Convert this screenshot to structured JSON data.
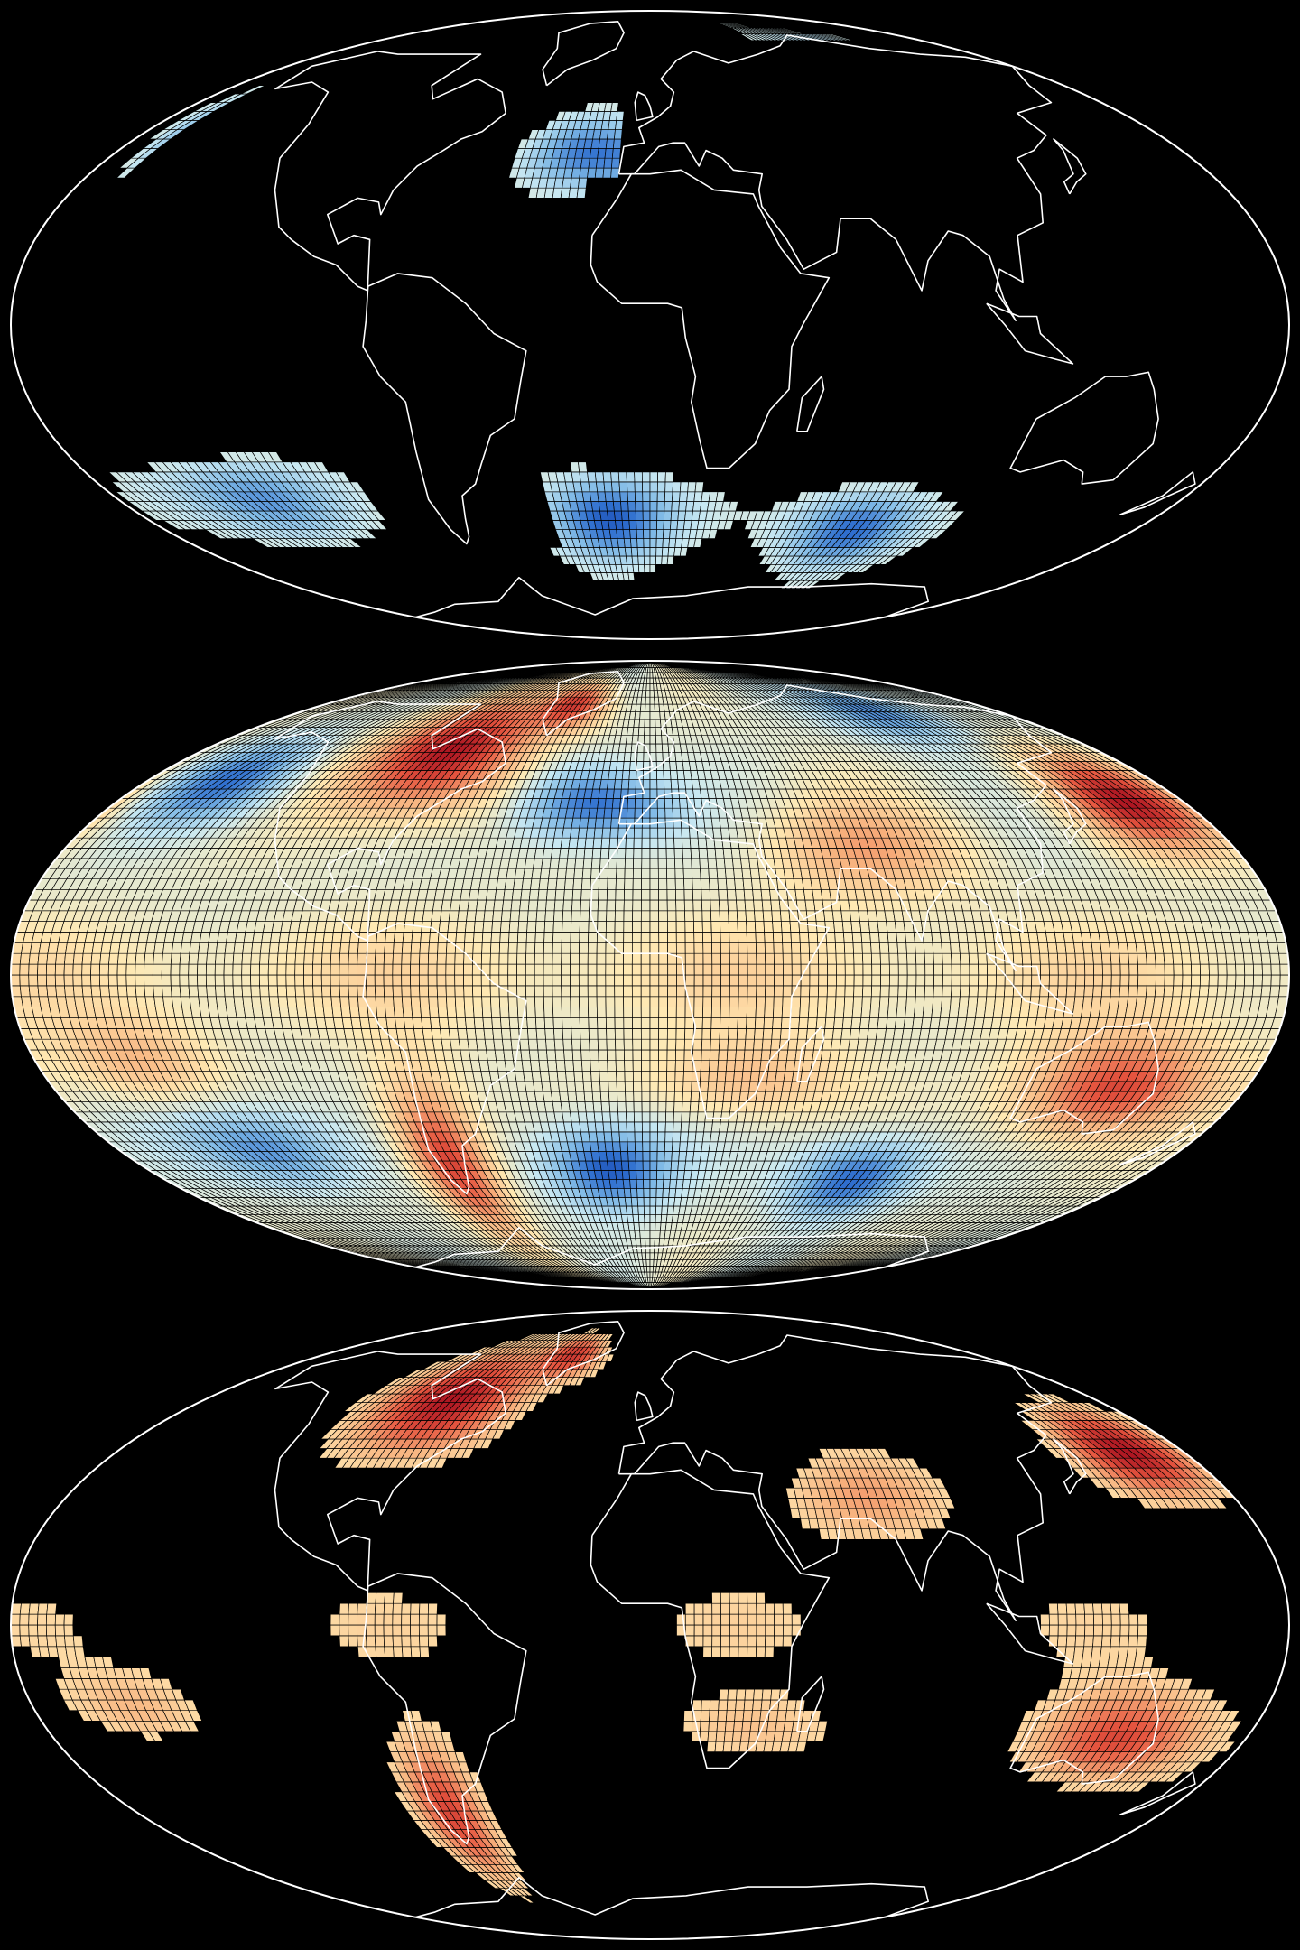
{
  "figure": {
    "background": "#000000",
    "projection": "mollweide",
    "grid_resolution_deg": 2.5,
    "outline_color": "#ffffff",
    "coastline_color": "#ffffff",
    "cell_edge_color": "#000000"
  },
  "colormap": {
    "name": "diverging blue-to-red",
    "stops": [
      "#0a2f9e",
      "#2f6fcf",
      "#7fb9e6",
      "#c8e8f2",
      "#ffe9b3",
      "#f7b07c",
      "#e5553f",
      "#a8101f"
    ]
  },
  "panels": [
    {
      "id": "top",
      "subset": "negative anomalies only",
      "filter": "neg"
    },
    {
      "id": "middle",
      "subset": "all grid cells",
      "filter": "all"
    },
    {
      "id": "bottom",
      "subset": "positive anomalies only",
      "filter": "pos"
    }
  ],
  "field_features": [
    {
      "name": "north-pacific-cold-pool",
      "lon": -150,
      "lat": 47,
      "amp": -1.0,
      "rlon": 22,
      "rlat": 11
    },
    {
      "name": "atlantic-subpolar-cold",
      "lon": -25,
      "lat": 42,
      "amp": -0.9,
      "rlon": 20,
      "rlat": 10
    },
    {
      "name": "north-atlantic-cold",
      "lon": -5,
      "lat": 40,
      "amp": -0.5,
      "rlon": 18,
      "rlat": 8
    },
    {
      "name": "arctic-siberia-cold",
      "lon": 115,
      "lat": 68,
      "amp": -0.9,
      "rlon": 26,
      "rlat": 9
    },
    {
      "name": "south-pacific-cold",
      "lon": -130,
      "lat": -42,
      "amp": -0.9,
      "rlon": 26,
      "rlat": 10
    },
    {
      "name": "south-atlantic-cold",
      "lon": -15,
      "lat": -47,
      "amp": -1.2,
      "rlon": 22,
      "rlat": 11
    },
    {
      "name": "south-indian-cold",
      "lon": 75,
      "lat": -50,
      "amp": -1.1,
      "rlon": 22,
      "rlat": 10
    },
    {
      "name": "north-america-warm",
      "lon": -80,
      "lat": 55,
      "amp": 1.4,
      "rlon": 30,
      "rlat": 16
    },
    {
      "name": "greenland-warm",
      "lon": -40,
      "lat": 70,
      "amp": 1.1,
      "rlon": 18,
      "rlat": 8
    },
    {
      "name": "northwest-pacific-warm",
      "lon": 160,
      "lat": 42,
      "amp": 1.3,
      "rlon": 22,
      "rlat": 12
    },
    {
      "name": "south-america-warm",
      "lon": -70,
      "lat": -45,
      "amp": 1.2,
      "rlon": 14,
      "rlat": 20
    },
    {
      "name": "australia-warm",
      "lon": 140,
      "lat": -27,
      "amp": 1.1,
      "rlon": 28,
      "rlat": 12
    },
    {
      "name": "southeast-pacific-warm",
      "lon": -150,
      "lat": -20,
      "amp": 0.5,
      "rlon": 22,
      "rlat": 10
    },
    {
      "name": "central-asia-warm",
      "lon": 65,
      "lat": 30,
      "amp": 0.6,
      "rlon": 30,
      "rlat": 12
    },
    {
      "name": "south-africa-warm",
      "lon": 30,
      "lat": -25,
      "amp": 0.5,
      "rlon": 30,
      "rlat": 10
    },
    {
      "name": "tropical-band-warm",
      "lon": 0,
      "lat": 0,
      "amp": 0.25,
      "rlon": 400,
      "rlat": 14
    }
  ]
}
